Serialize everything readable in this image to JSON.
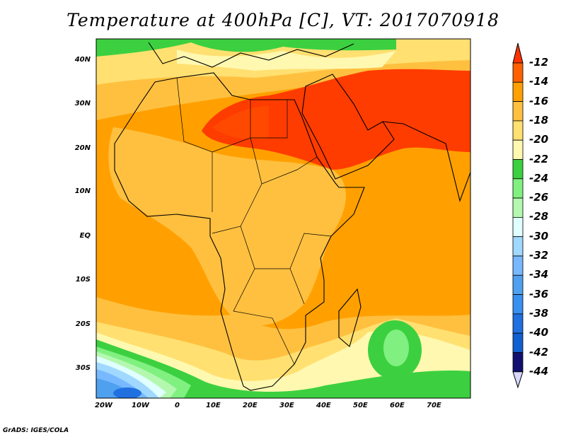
{
  "title": "Temperature at 400hPa [C], VT: 2017070918",
  "credit": "GrADS: IGES/COLA",
  "lat_labels": [
    "40N",
    "30N",
    "20N",
    "10N",
    "EQ",
    "10S",
    "20S",
    "30S"
  ],
  "lon_labels": [
    "20W",
    "10W",
    "0",
    "10E",
    "20E",
    "30E",
    "40E",
    "50E",
    "60E",
    "70E"
  ],
  "colorbar": {
    "labels": [
      "-12",
      "-14",
      "-16",
      "-18",
      "-20",
      "-22",
      "-24",
      "-26",
      "-28",
      "-30",
      "-32",
      "-34",
      "-36",
      "-38",
      "-40",
      "-42",
      "-44"
    ],
    "colors": [
      "#ff3300",
      "#ff6000",
      "#ffa000",
      "#ffc040",
      "#ffe070",
      "#fff8b0",
      "#3cd040",
      "#80f080",
      "#b4f8b0",
      "#e0ffff",
      "#a0d8ff",
      "#78b8ff",
      "#50a0f0",
      "#3890f0",
      "#2070e0",
      "#1060d0",
      "#101070",
      "#d8d8ff"
    ]
  }
}
